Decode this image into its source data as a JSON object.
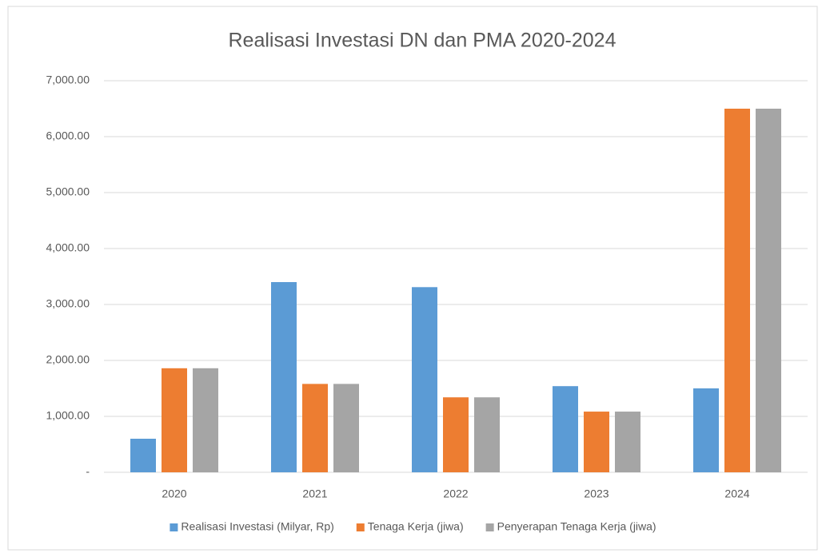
{
  "chart_data": {
    "type": "bar",
    "title": "Realisasi Investasi DN dan PMA 2020-2024",
    "categories": [
      "2020",
      "2021",
      "2022",
      "2023",
      "2024"
    ],
    "series": [
      {
        "name": "Realisasi Investasi (Milyar, Rp)",
        "color": "#5b9bd5",
        "values": [
          600,
          3400,
          3310,
          1540,
          1500
        ]
      },
      {
        "name": "Tenaga Kerja (jiwa)",
        "color": "#ed7d31",
        "values": [
          1860,
          1580,
          1340,
          1085,
          6500
        ]
      },
      {
        "name": "Penyerapan Tenaga Kerja (jiwa)",
        "color": "#a5a5a5",
        "values": [
          1860,
          1580,
          1340,
          1085,
          6500
        ]
      }
    ],
    "ylim": [
      0,
      7000
    ],
    "yticks": [
      {
        "value": 0,
        "label": "-"
      },
      {
        "value": 1000,
        "label": "1,000.00"
      },
      {
        "value": 2000,
        "label": "2,000.00"
      },
      {
        "value": 3000,
        "label": "3,000.00"
      },
      {
        "value": 4000,
        "label": "4,000.00"
      },
      {
        "value": 5000,
        "label": "5,000.00"
      },
      {
        "value": 6000,
        "label": "6,000.00"
      },
      {
        "value": 7000,
        "label": "7,000.00"
      }
    ],
    "grid": true,
    "legend": "bottom"
  }
}
